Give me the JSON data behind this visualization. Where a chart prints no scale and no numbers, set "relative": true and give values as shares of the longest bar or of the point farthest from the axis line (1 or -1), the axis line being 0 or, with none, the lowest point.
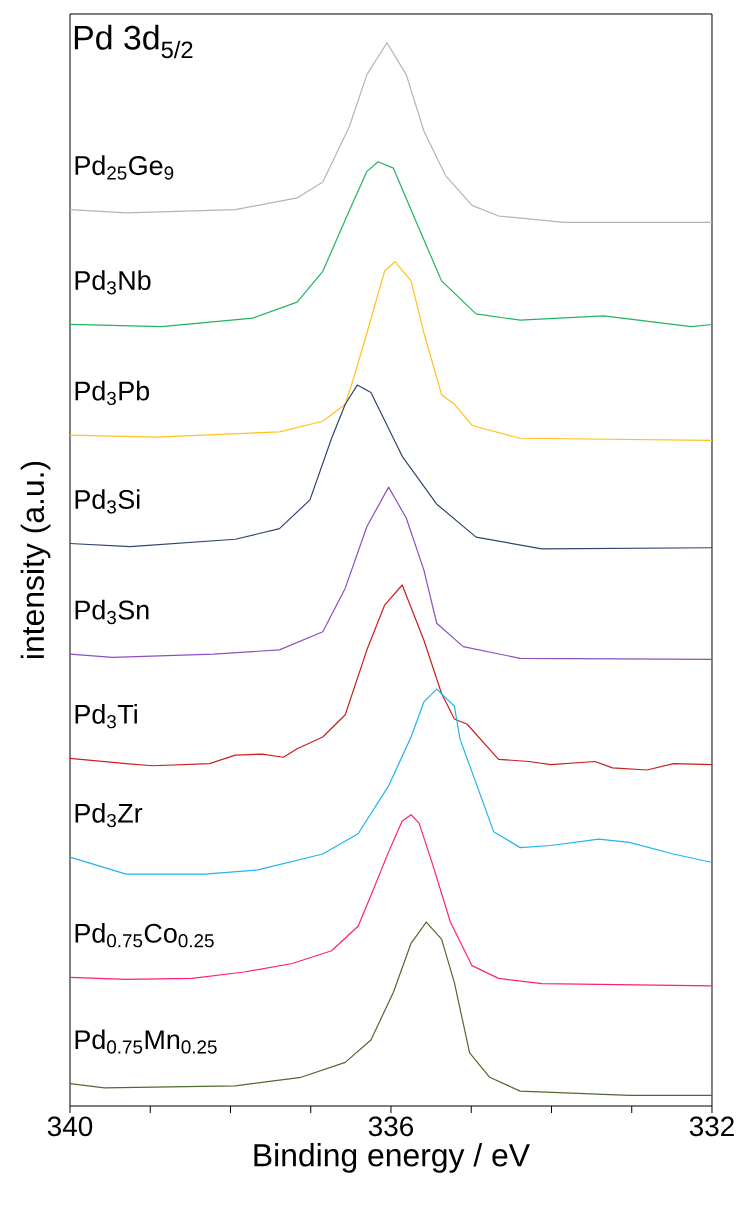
{
  "chart_data": {
    "type": "line",
    "title": "Pd 3d$_{5/2}$",
    "xlabel": "Binding energy / eV",
    "ylabel": "intensity (a.u.)",
    "relative": true,
    "xlim": [
      340,
      332
    ],
    "xticks": [
      340,
      {
        "value": 339,
        "label": null
      },
      {
        "value": 338,
        "label": null
      },
      {
        "value": 337,
        "label": null
      },
      336,
      {
        "value": 335,
        "label": null
      },
      {
        "value": 334,
        "label": null
      },
      {
        "value": 333,
        "label": null
      },
      332
    ],
    "series": [
      {
        "name": "Pd$_{25}$Ge$_{9}$",
        "color": "#b4b4b4",
        "x": [
          340,
          339.3,
          337.94,
          337.17,
          336.85,
          336.52,
          336.3,
          336.05,
          335.81,
          335.59,
          335.32,
          334.99,
          334.66,
          333.84,
          332
        ],
        "values": [
          0.843,
          0.84,
          0.843,
          0.854,
          0.869,
          0.921,
          0.97,
          1.0,
          0.97,
          0.917,
          0.875,
          0.847,
          0.837,
          0.831,
          0.831
        ]
      },
      {
        "name": "Pd$_{3}$Nb",
        "color": "#22b35e",
        "x": [
          340,
          338.86,
          337.72,
          337.17,
          336.85,
          336.52,
          336.3,
          336.16,
          335.97,
          335.7,
          335.37,
          334.94,
          334.39,
          333.35,
          332.26,
          332
        ],
        "values": [
          0.735,
          0.733,
          0.741,
          0.756,
          0.785,
          0.842,
          0.879,
          0.888,
          0.882,
          0.834,
          0.776,
          0.745,
          0.739,
          0.743,
          0.733,
          0.735
        ]
      },
      {
        "name": "Pd$_{3}$Pb",
        "color": "#ffc21e",
        "x": [
          340,
          338.92,
          337.39,
          336.85,
          336.57,
          336.46,
          336.3,
          336.08,
          335.95,
          335.75,
          335.59,
          335.37,
          335.21,
          334.99,
          334.39,
          332
        ],
        "values": [
          0.631,
          0.629,
          0.634,
          0.644,
          0.66,
          0.686,
          0.727,
          0.785,
          0.794,
          0.776,
          0.727,
          0.669,
          0.66,
          0.64,
          0.628,
          0.626
        ]
      },
      {
        "name": "Pd$_{3}$Si",
        "color": "#2f4470",
        "x": [
          340,
          339.25,
          337.94,
          337.39,
          337.01,
          336.74,
          336.57,
          336.42,
          336.25,
          335.86,
          335.43,
          334.94,
          334.12,
          332
        ],
        "values": [
          0.529,
          0.526,
          0.533,
          0.543,
          0.57,
          0.628,
          0.66,
          0.678,
          0.671,
          0.611,
          0.566,
          0.535,
          0.524,
          0.525
        ]
      },
      {
        "name": "Pd$_{3}$Sn",
        "color": "#8b4fc0",
        "x": [
          340,
          339.47,
          338.21,
          337.39,
          336.85,
          336.57,
          336.3,
          336.03,
          335.81,
          335.59,
          335.43,
          335.1,
          334.39,
          332
        ],
        "values": [
          0.425,
          0.422,
          0.425,
          0.429,
          0.446,
          0.487,
          0.545,
          0.582,
          0.553,
          0.504,
          0.454,
          0.432,
          0.421,
          0.42
        ]
      },
      {
        "name": "Pd$_{3}$Ti",
        "color": "#c8201e",
        "x": [
          340,
          339.3,
          338.97,
          338.26,
          337.94,
          337.61,
          337.34,
          337.17,
          336.85,
          336.57,
          336.3,
          336.08,
          335.86,
          335.59,
          335.37,
          335.21,
          335.05,
          334.66,
          334.28,
          334.01,
          333.46,
          333.24,
          332.81,
          332.48,
          332
        ],
        "values": [
          0.327,
          0.322,
          0.32,
          0.322,
          0.33,
          0.331,
          0.328,
          0.336,
          0.347,
          0.368,
          0.429,
          0.471,
          0.49,
          0.438,
          0.388,
          0.364,
          0.359,
          0.326,
          0.324,
          0.321,
          0.324,
          0.318,
          0.316,
          0.322,
          0.321
        ]
      },
      {
        "name": "Pd$_{3}$Zr",
        "color": "#1eb4f0",
        "x": [
          340,
          339.3,
          338.32,
          337.66,
          336.85,
          336.41,
          336.03,
          335.75,
          335.59,
          335.43,
          335.21,
          335.14,
          334.99,
          334.72,
          334.39,
          334.01,
          333.41,
          333.03,
          332.48,
          332
        ],
        "values": [
          0.234,
          0.218,
          0.218,
          0.222,
          0.237,
          0.256,
          0.301,
          0.347,
          0.38,
          0.392,
          0.376,
          0.345,
          0.314,
          0.258,
          0.243,
          0.245,
          0.251,
          0.248,
          0.237,
          0.229
        ]
      },
      {
        "name": "Pd$_{0.75}$Co$_{0.25}$",
        "color": "#ff1f7a",
        "x": [
          340,
          339.3,
          338.48,
          337.83,
          337.23,
          336.74,
          336.41,
          336.25,
          336.03,
          335.86,
          335.75,
          335.65,
          335.48,
          335.26,
          334.99,
          334.66,
          334.12,
          332
        ],
        "values": [
          0.121,
          0.119,
          0.12,
          0.126,
          0.134,
          0.146,
          0.169,
          0.198,
          0.239,
          0.268,
          0.274,
          0.266,
          0.227,
          0.173,
          0.132,
          0.12,
          0.115,
          0.113
        ]
      },
      {
        "name": "Pd$_{0.75}$Mn$_{0.25}$",
        "color": "#4f6b2f",
        "x": [
          340,
          339.57,
          337.94,
          337.12,
          336.57,
          336.25,
          335.97,
          335.75,
          335.56,
          335.37,
          335.21,
          335.02,
          334.77,
          334.39,
          333.03,
          332
        ],
        "values": [
          0.021,
          0.017,
          0.019,
          0.027,
          0.041,
          0.062,
          0.107,
          0.153,
          0.173,
          0.157,
          0.116,
          0.05,
          0.027,
          0.014,
          0.01,
          0.01
        ]
      }
    ]
  }
}
